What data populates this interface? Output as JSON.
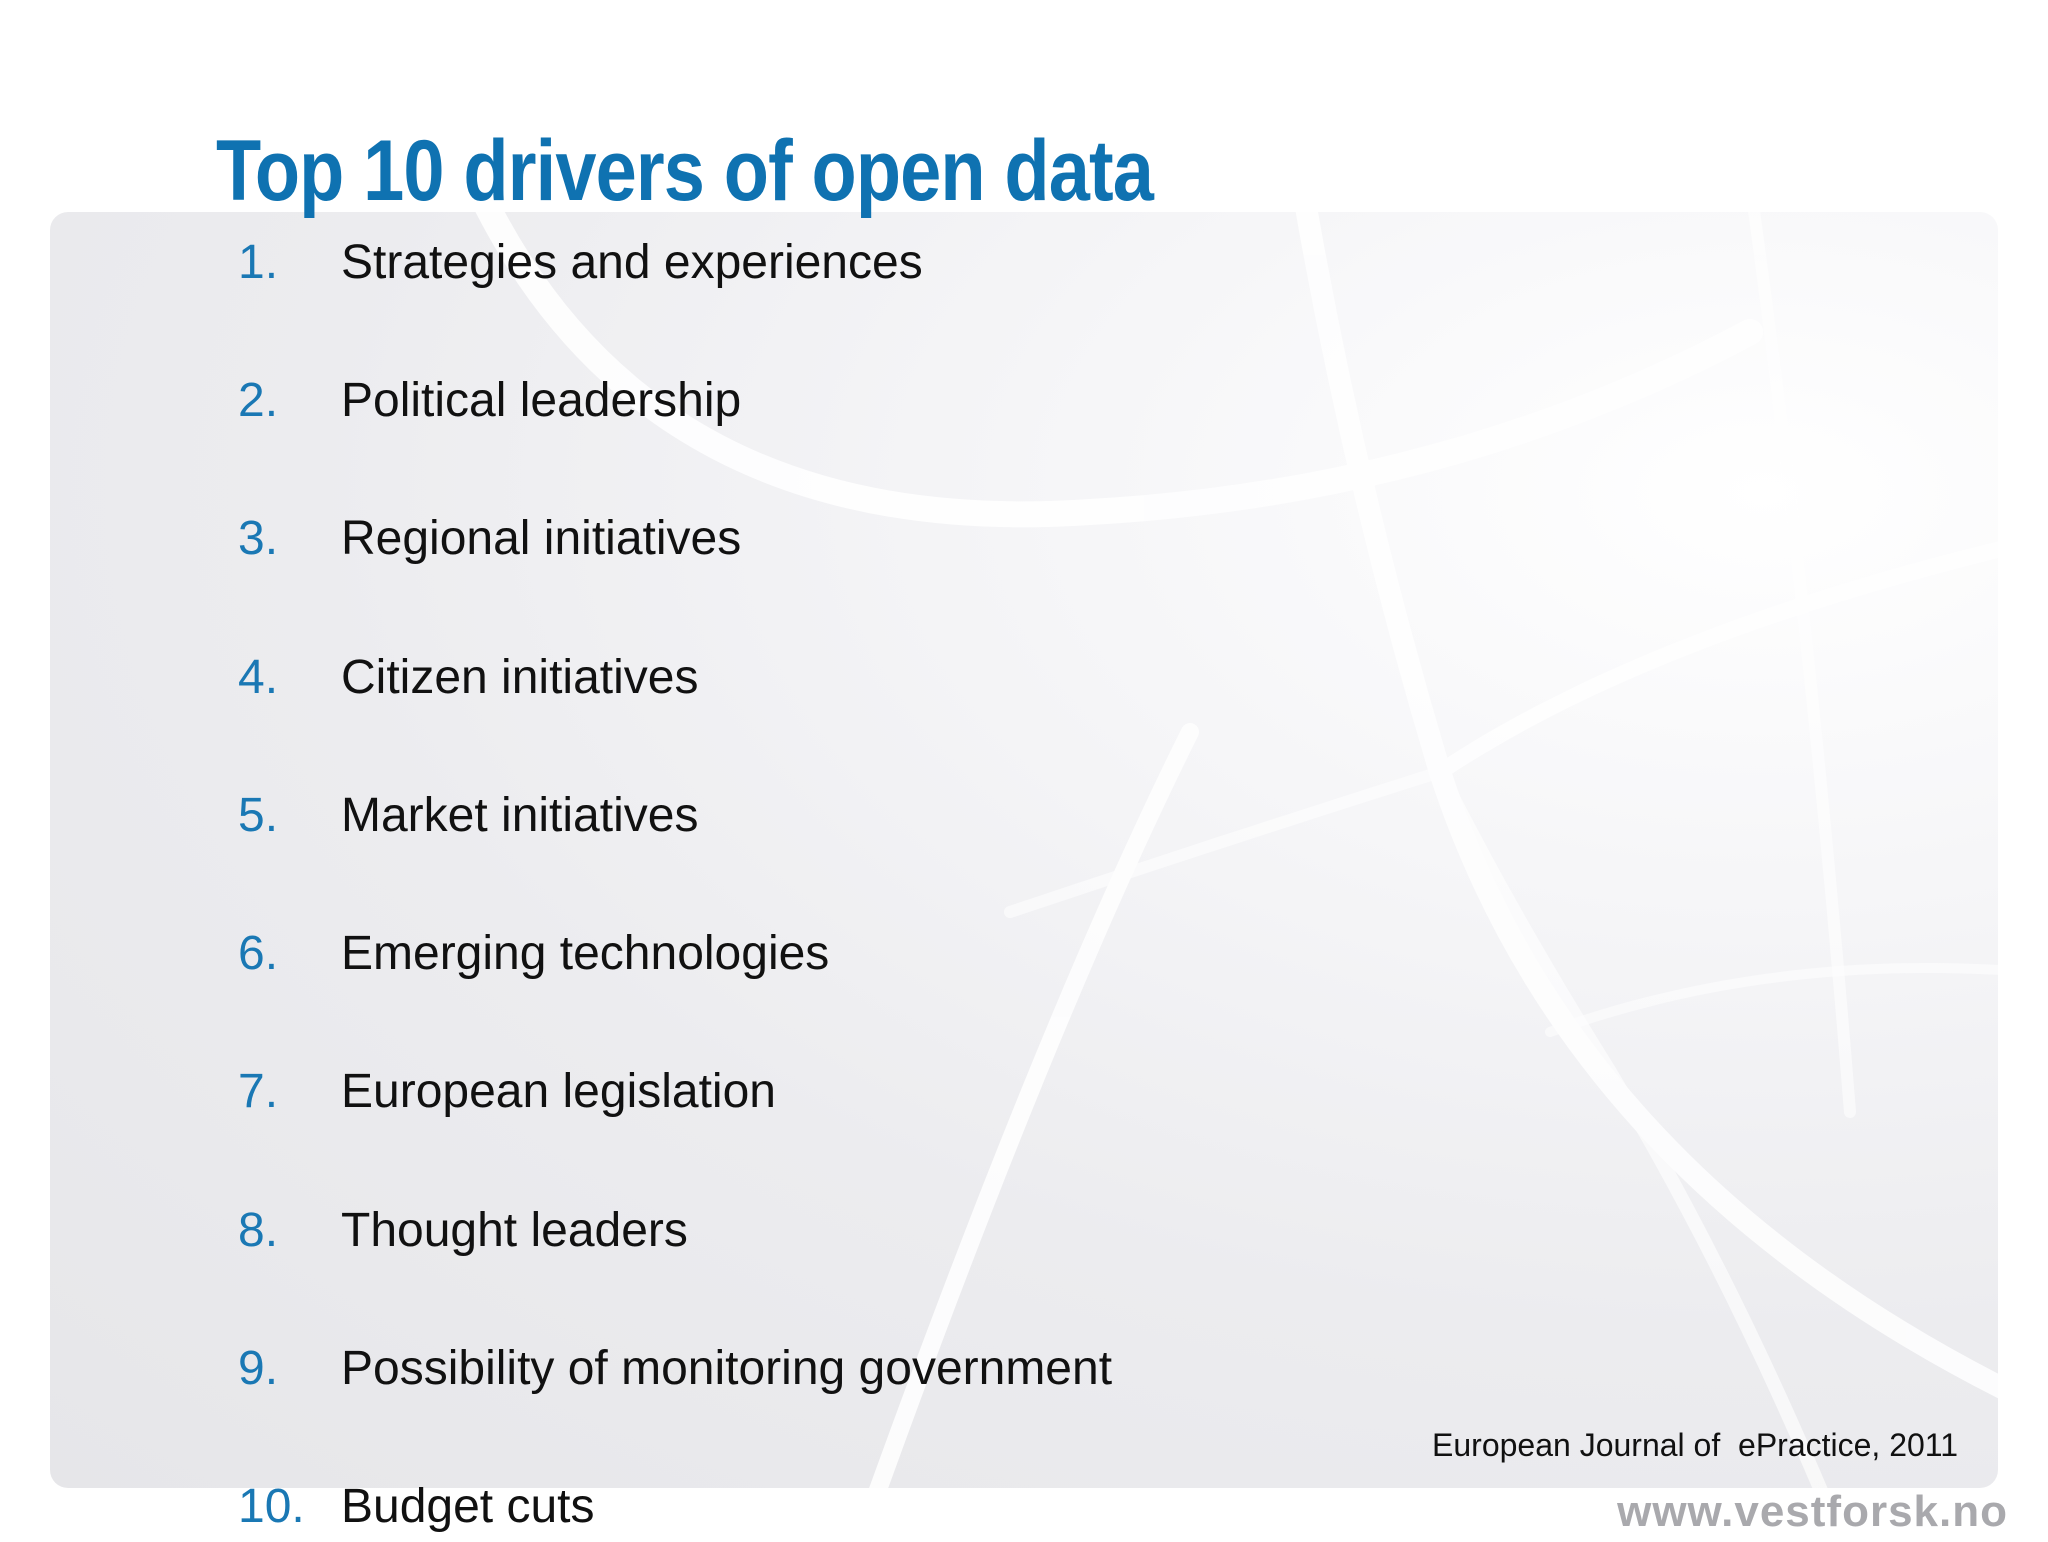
{
  "slide": {
    "title": "Top 10 drivers of open data",
    "items": [
      {
        "number": "1.",
        "text": "Strategies and experiences"
      },
      {
        "number": "2.",
        "text": "Political leadership"
      },
      {
        "number": "3.",
        "text": "Regional initiatives"
      },
      {
        "number": "4.",
        "text": "Citizen initiatives"
      },
      {
        "number": "5.",
        "text": "Market initiatives"
      },
      {
        "number": "6.",
        "text": "Emerging technologies"
      },
      {
        "number": "7.",
        "text": "European legislation"
      },
      {
        "number": "8.",
        "text": "Thought leaders"
      },
      {
        "number": "9.",
        "text": "Possibility of monitoring government"
      },
      {
        "number": "10.",
        "text": "Budget cuts"
      }
    ],
    "source": "European Journal of  ePractice, 2011",
    "website": "www.vestforsk.no"
  },
  "colors": {
    "title": "#0f72b1",
    "numbers": "#1a78b4",
    "text": "#111111",
    "website": "#a9a9ad",
    "background_panel": "#e9e9ec"
  }
}
